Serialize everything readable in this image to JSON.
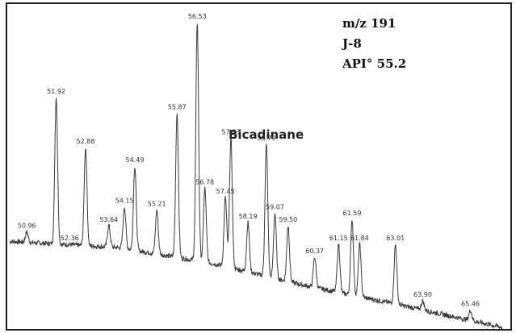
{
  "chart_data": {
    "type": "line",
    "info_lines": [
      "m/z 191",
      "J-8",
      "API° 55.2"
    ],
    "annotation": "Bicadinane",
    "xlim": [
      50.4,
      66.5
    ],
    "ylim": [
      0,
      100
    ],
    "baseline": [
      [
        50.4,
        28
      ],
      [
        54,
        26
      ],
      [
        57,
        21
      ],
      [
        60,
        14
      ],
      [
        63,
        8
      ],
      [
        66.5,
        0.5
      ]
    ],
    "peaks": [
      {
        "label": "50.96",
        "x": 50.96,
        "h": 31
      },
      {
        "label": "51.92",
        "x": 51.92,
        "h": 74
      },
      {
        "label": "52.36",
        "x": 52.36,
        "h": 27
      },
      {
        "label": "52.88",
        "x": 52.88,
        "h": 58
      },
      {
        "label": "53.64",
        "x": 53.64,
        "h": 33
      },
      {
        "label": "54.15",
        "x": 54.15,
        "h": 39
      },
      {
        "label": "54.49",
        "x": 54.49,
        "h": 52
      },
      {
        "label": "55.21",
        "x": 55.21,
        "h": 38
      },
      {
        "label": "55.87",
        "x": 55.87,
        "h": 69
      },
      {
        "label": "56.53",
        "x": 56.53,
        "h": 98
      },
      {
        "label": "56.78",
        "x": 56.78,
        "h": 45
      },
      {
        "label": "57.45",
        "x": 57.45,
        "h": 42
      },
      {
        "label": "57.63",
        "x": 57.63,
        "h": 61
      },
      {
        "label": "58.19",
        "x": 58.19,
        "h": 34
      },
      {
        "label": "58.79",
        "x": 58.79,
        "h": 59
      },
      {
        "label": "59.07",
        "x": 59.07,
        "h": 37
      },
      {
        "label": "59.50",
        "x": 59.5,
        "h": 33
      },
      {
        "label": "60.37",
        "x": 60.37,
        "h": 23
      },
      {
        "label": "61.15",
        "x": 61.15,
        "h": 27
      },
      {
        "label": "61.59",
        "x": 61.59,
        "h": 35
      },
      {
        "label": "61.84",
        "x": 61.84,
        "h": 27
      },
      {
        "label": "63.01",
        "x": 63.01,
        "h": 27
      },
      {
        "label": "63.90",
        "x": 63.9,
        "h": 9
      },
      {
        "label": "65.46",
        "x": 65.46,
        "h": 6
      }
    ]
  }
}
